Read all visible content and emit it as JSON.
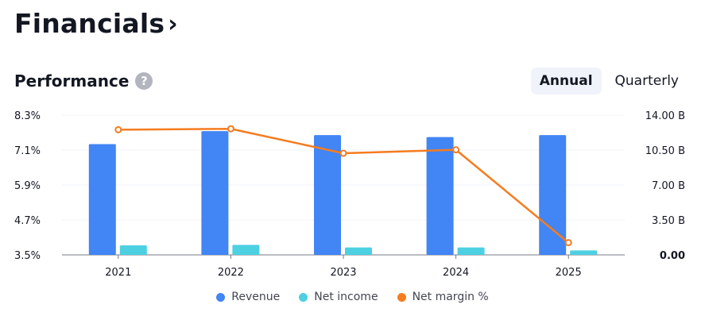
{
  "header": {
    "title": "Financials",
    "chevron": "›"
  },
  "section": {
    "title": "Performance",
    "help_icon": "?"
  },
  "tabs": [
    {
      "label": "Annual",
      "active": true
    },
    {
      "label": "Quarterly",
      "active": false
    }
  ],
  "colors": {
    "revenue": "#4285f4",
    "net_income": "#4dd0e1",
    "net_margin": "#f57c1f"
  },
  "chart_data": {
    "type": "bar",
    "categories": [
      "2021",
      "2022",
      "2023",
      "2024",
      "2025"
    ],
    "series": [
      {
        "name": "Revenue",
        "type": "bar",
        "axis": "right",
        "values": [
          11.1,
          12.4,
          12.0,
          11.8,
          12.0
        ]
      },
      {
        "name": "Net income",
        "type": "bar",
        "axis": "right",
        "values": [
          0.95,
          1.0,
          0.75,
          0.75,
          0.45
        ]
      },
      {
        "name": "Net margin %",
        "type": "line",
        "axis": "left",
        "values": [
          7.8,
          7.83,
          6.99,
          7.11,
          3.92
        ]
      }
    ],
    "left_axis": {
      "ticks": [
        "8.3%",
        "7.1%",
        "5.9%",
        "4.7%",
        "3.5%"
      ],
      "min": 3.5,
      "max": 8.3
    },
    "right_axis": {
      "ticks": [
        "14.00 B",
        "10.50 B",
        "7.00 B",
        "3.50 B",
        "0.00"
      ],
      "min": 0,
      "max": 14
    },
    "grid": true,
    "legend_position": "bottom"
  }
}
